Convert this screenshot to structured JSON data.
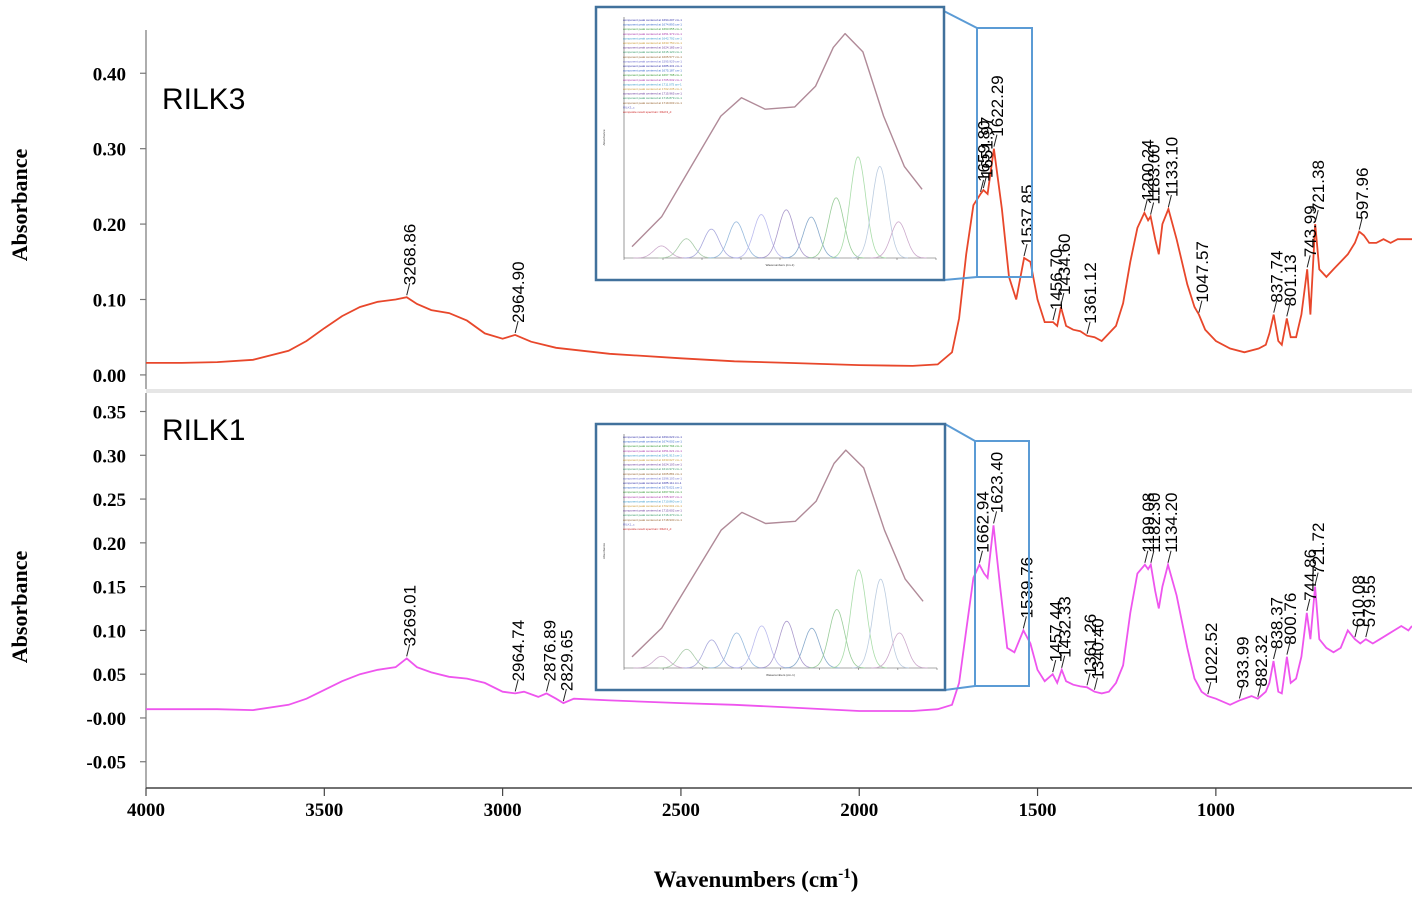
{
  "chart_data": {
    "type": "line",
    "xlabel": "Wavenumbers (cm",
    "xlabel_sup": "-1",
    "xlabel_close": ")",
    "xlim": [
      4000,
      450
    ],
    "xticks": [
      4000,
      3500,
      3000,
      2500,
      2000,
      1500,
      1000
    ],
    "panels": [
      {
        "name": "RILK3",
        "color": "#e8472b",
        "ylabel": "Absorbance",
        "ylim": [
          -0.02,
          0.46
        ],
        "yticks": [
          0.4,
          0.3,
          0.2,
          0.1,
          0.0
        ],
        "ytick_labels": [
          "0.40",
          "0.30",
          "0.20",
          "0.10",
          "0.00"
        ],
        "spectrum": {
          "x": [
            4000,
            3900,
            3800,
            3700,
            3600,
            3550,
            3500,
            3450,
            3400,
            3350,
            3300,
            3268.86,
            3240,
            3200,
            3150,
            3100,
            3050,
            3000,
            2964.9,
            2920,
            2850,
            2700,
            2500,
            2350,
            2200,
            2000,
            1850,
            1780,
            1740,
            1720,
            1700,
            1680,
            1659.8,
            1651.97,
            1640,
            1622.29,
            1600,
            1580,
            1560,
            1537.85,
            1520,
            1500,
            1480,
            1456.7,
            1445,
            1434.6,
            1420,
            1400,
            1380,
            1361.12,
            1340,
            1320,
            1300,
            1280,
            1260,
            1240,
            1220,
            1200.24,
            1190,
            1183,
            1170,
            1160,
            1150,
            1133.1,
            1110,
            1080,
            1060,
            1047.57,
            1030,
            1000,
            960,
            920,
            880,
            860,
            850,
            837.74,
            825,
            815,
            801.13,
            790,
            775,
            760,
            743.99,
            735,
            721.38,
            710,
            690,
            670,
            650,
            630,
            610,
            597.96,
            585,
            570,
            550,
            530,
            510,
            490,
            470,
            450
          ],
          "y": [
            0.016,
            0.016,
            0.017,
            0.02,
            0.032,
            0.045,
            0.062,
            0.078,
            0.09,
            0.097,
            0.1,
            0.103,
            0.094,
            0.086,
            0.082,
            0.072,
            0.055,
            0.048,
            0.053,
            0.044,
            0.036,
            0.028,
            0.022,
            0.018,
            0.016,
            0.013,
            0.012,
            0.014,
            0.03,
            0.075,
            0.16,
            0.225,
            0.24,
            0.245,
            0.24,
            0.3,
            0.22,
            0.13,
            0.1,
            0.155,
            0.15,
            0.1,
            0.07,
            0.07,
            0.065,
            0.09,
            0.065,
            0.06,
            0.058,
            0.052,
            0.05,
            0.045,
            0.055,
            0.065,
            0.095,
            0.15,
            0.195,
            0.215,
            0.205,
            0.21,
            0.18,
            0.16,
            0.2,
            0.22,
            0.18,
            0.12,
            0.09,
            0.08,
            0.06,
            0.045,
            0.035,
            0.03,
            0.035,
            0.04,
            0.055,
            0.08,
            0.045,
            0.04,
            0.075,
            0.05,
            0.05,
            0.08,
            0.14,
            0.08,
            0.2,
            0.14,
            0.13,
            0.14,
            0.15,
            0.16,
            0.175,
            0.19,
            0.185,
            0.175,
            0.175,
            0.18,
            0.175,
            0.18,
            0.18,
            0.18
          ]
        },
        "peak_labels": [
          "3268.86",
          "2964.90",
          "1659.80",
          "1651.97",
          "1622.29",
          "1537.85",
          "1456.70",
          "1434.60",
          "1361.12",
          "1200.24",
          "1183.00",
          "1133.10",
          "1047.57",
          "837.74",
          "801.13",
          "743.99",
          "721.38",
          "597.96"
        ],
        "peak_positions": [
          3268.86,
          2964.9,
          1659.8,
          1651.97,
          1622.29,
          1537.85,
          1456.7,
          1434.6,
          1361.12,
          1200.24,
          1183.0,
          1133.1,
          1047.57,
          837.74,
          801.13,
          743.99,
          721.38,
          597.96
        ],
        "inset": {
          "xlabel": "Wavenumbers (cm-1)",
          "ylabel": "Absorbance",
          "legend": [
            "component peak centered at 1694.207 cm-1",
            "component peak centered at 1674.893 cm-1",
            "component peak centered at 1663.655 cm-1",
            "component peak centered at 1651.373 cm-1",
            "component peak centered at 1642.792 cm-1",
            "component peak centered at 1633.750 cm-1",
            "component peak centered at 1624.185 cm-1",
            "component peak centered at 1615.120 cm-1",
            "component peak centered at 1605.577 cm-1",
            "component peak centered at 1595.929 cm-1",
            "component peak centered at 1685.431 cm-1",
            "component peak centered at 1675.187 cm-1",
            "component peak centered at 1667.798 cm-1",
            "component peak centered at 1705.632 cm-1",
            "component peak centered at 1711.075 cm-1",
            "component peak centered at 1702.235 cm-1",
            "component peak centered at 1715.965 cm-1",
            "component peak centered at 1716.879 cm-1",
            "component peak centered at 1719.003 cm-1",
            "RILK3_c",
            "composite result spectrum: RILK3_d"
          ]
        }
      },
      {
        "name": "RILK1",
        "color": "#ee55ee",
        "ylabel": "Absorbance",
        "ylim": [
          -0.08,
          0.37
        ],
        "yticks": [
          0.35,
          0.3,
          0.25,
          0.2,
          0.15,
          0.1,
          0.05,
          0.0,
          -0.05
        ],
        "ytick_labels": [
          "0.35",
          "0.30",
          "0.25",
          "0.20",
          "0.15",
          "0.10",
          "0.05",
          "-0.00",
          "-0.05"
        ],
        "spectrum": {
          "x": [
            4000,
            3900,
            3800,
            3700,
            3600,
            3550,
            3500,
            3450,
            3400,
            3350,
            3300,
            3269.01,
            3240,
            3200,
            3150,
            3100,
            3050,
            3000,
            2964.74,
            2940,
            2900,
            2876.89,
            2850,
            2829.65,
            2800,
            2700,
            2500,
            2350,
            2200,
            2000,
            1850,
            1780,
            1740,
            1720,
            1700,
            1680,
            1662.94,
            1650,
            1640,
            1623.4,
            1605,
            1585,
            1565,
            1539.76,
            1520,
            1500,
            1480,
            1457.44,
            1445,
            1432.33,
            1420,
            1400,
            1380,
            1361.26,
            1340.4,
            1320,
            1300,
            1280,
            1260,
            1240,
            1220,
            1199.08,
            1190,
            1182.3,
            1170,
            1160,
            1150,
            1134.2,
            1110,
            1080,
            1060,
            1040,
            1022.52,
            1000,
            960,
            933.99,
            900,
            882.32,
            860,
            850,
            838.37,
            825,
            815,
            800.76,
            790,
            775,
            760,
            744.86,
            735,
            721.72,
            710,
            690,
            670,
            650,
            630,
            610.08,
            595,
            579.55,
            560,
            540,
            520,
            500,
            480,
            460,
            450
          ],
          "y": [
            0.01,
            0.01,
            0.01,
            0.009,
            0.015,
            0.022,
            0.032,
            0.042,
            0.05,
            0.055,
            0.058,
            0.068,
            0.058,
            0.052,
            0.047,
            0.045,
            0.04,
            0.03,
            0.028,
            0.03,
            0.024,
            0.028,
            0.022,
            0.017,
            0.022,
            0.02,
            0.017,
            0.015,
            0.012,
            0.008,
            0.008,
            0.01,
            0.015,
            0.04,
            0.1,
            0.16,
            0.175,
            0.165,
            0.16,
            0.22,
            0.15,
            0.08,
            0.075,
            0.1,
            0.085,
            0.055,
            0.042,
            0.05,
            0.04,
            0.055,
            0.042,
            0.038,
            0.036,
            0.035,
            0.03,
            0.028,
            0.03,
            0.04,
            0.06,
            0.12,
            0.165,
            0.175,
            0.17,
            0.175,
            0.145,
            0.125,
            0.15,
            0.175,
            0.14,
            0.08,
            0.045,
            0.03,
            0.025,
            0.022,
            0.015,
            0.02,
            0.025,
            0.022,
            0.03,
            0.04,
            0.065,
            0.03,
            0.028,
            0.07,
            0.04,
            0.045,
            0.07,
            0.12,
            0.09,
            0.15,
            0.09,
            0.08,
            0.075,
            0.08,
            0.1,
            0.09,
            0.085,
            0.09,
            0.085,
            0.09,
            0.095,
            0.1,
            0.105,
            0.1,
            0.105
          ]
        },
        "peak_labels": [
          "3269.01",
          "2964.74",
          "2876.89",
          "2829.65",
          "1662.94",
          "1623.40",
          "1539.76",
          "1457.44",
          "1432.33",
          "1361.26",
          "1340.40",
          "1199.08",
          "1182.30",
          "1134.20",
          "1022.52",
          "933.99",
          "882.32",
          "838.37",
          "800.76",
          "744.86",
          "721.72",
          "610.08",
          "579.55"
        ],
        "peak_positions": [
          3269.01,
          2964.74,
          2876.89,
          2829.65,
          1662.94,
          1623.4,
          1539.76,
          1457.44,
          1432.33,
          1361.26,
          1340.4,
          1199.08,
          1182.3,
          1134.2,
          1022.52,
          933.99,
          882.32,
          838.37,
          800.76,
          744.86,
          721.72,
          610.08,
          579.55
        ],
        "inset": {
          "xlabel": "Wavenumbers (cm-1)",
          "ylabel": "Absorbance",
          "legend": [
            "component peak centered at 1694.023 cm-1",
            "component peak centered at 1674.002 cm-1",
            "component peak centered at 1662.794 cm-1",
            "component peak centered at 1651.021 cm-1",
            "component peak centered at 1641.913 cm-1",
            "component peak centered at 1633.027 cm-1",
            "component peak centered at 1624.103 cm-1",
            "component peak centered at 1614.973 cm-1",
            "component peak centered at 1605.881 cm-1",
            "component peak centered at 1596.103 cm-1",
            "component peak centered at 1685.111 cm-1",
            "component peak centered at 1675.021 cm-1",
            "component peak centered at 1667.501 cm-1",
            "component peak centered at 1705.337 cm-1",
            "component peak centered at 1710.860 cm-1",
            "component peak centered at 1702.001 cm-1",
            "component peak centered at 1715.602 cm-1",
            "component peak centered at 1716.470 cm-1",
            "component peak centered at 1718.930 cm-1",
            "RILK1_c",
            "composite result spectrum: RILK1_d"
          ]
        }
      }
    ]
  }
}
